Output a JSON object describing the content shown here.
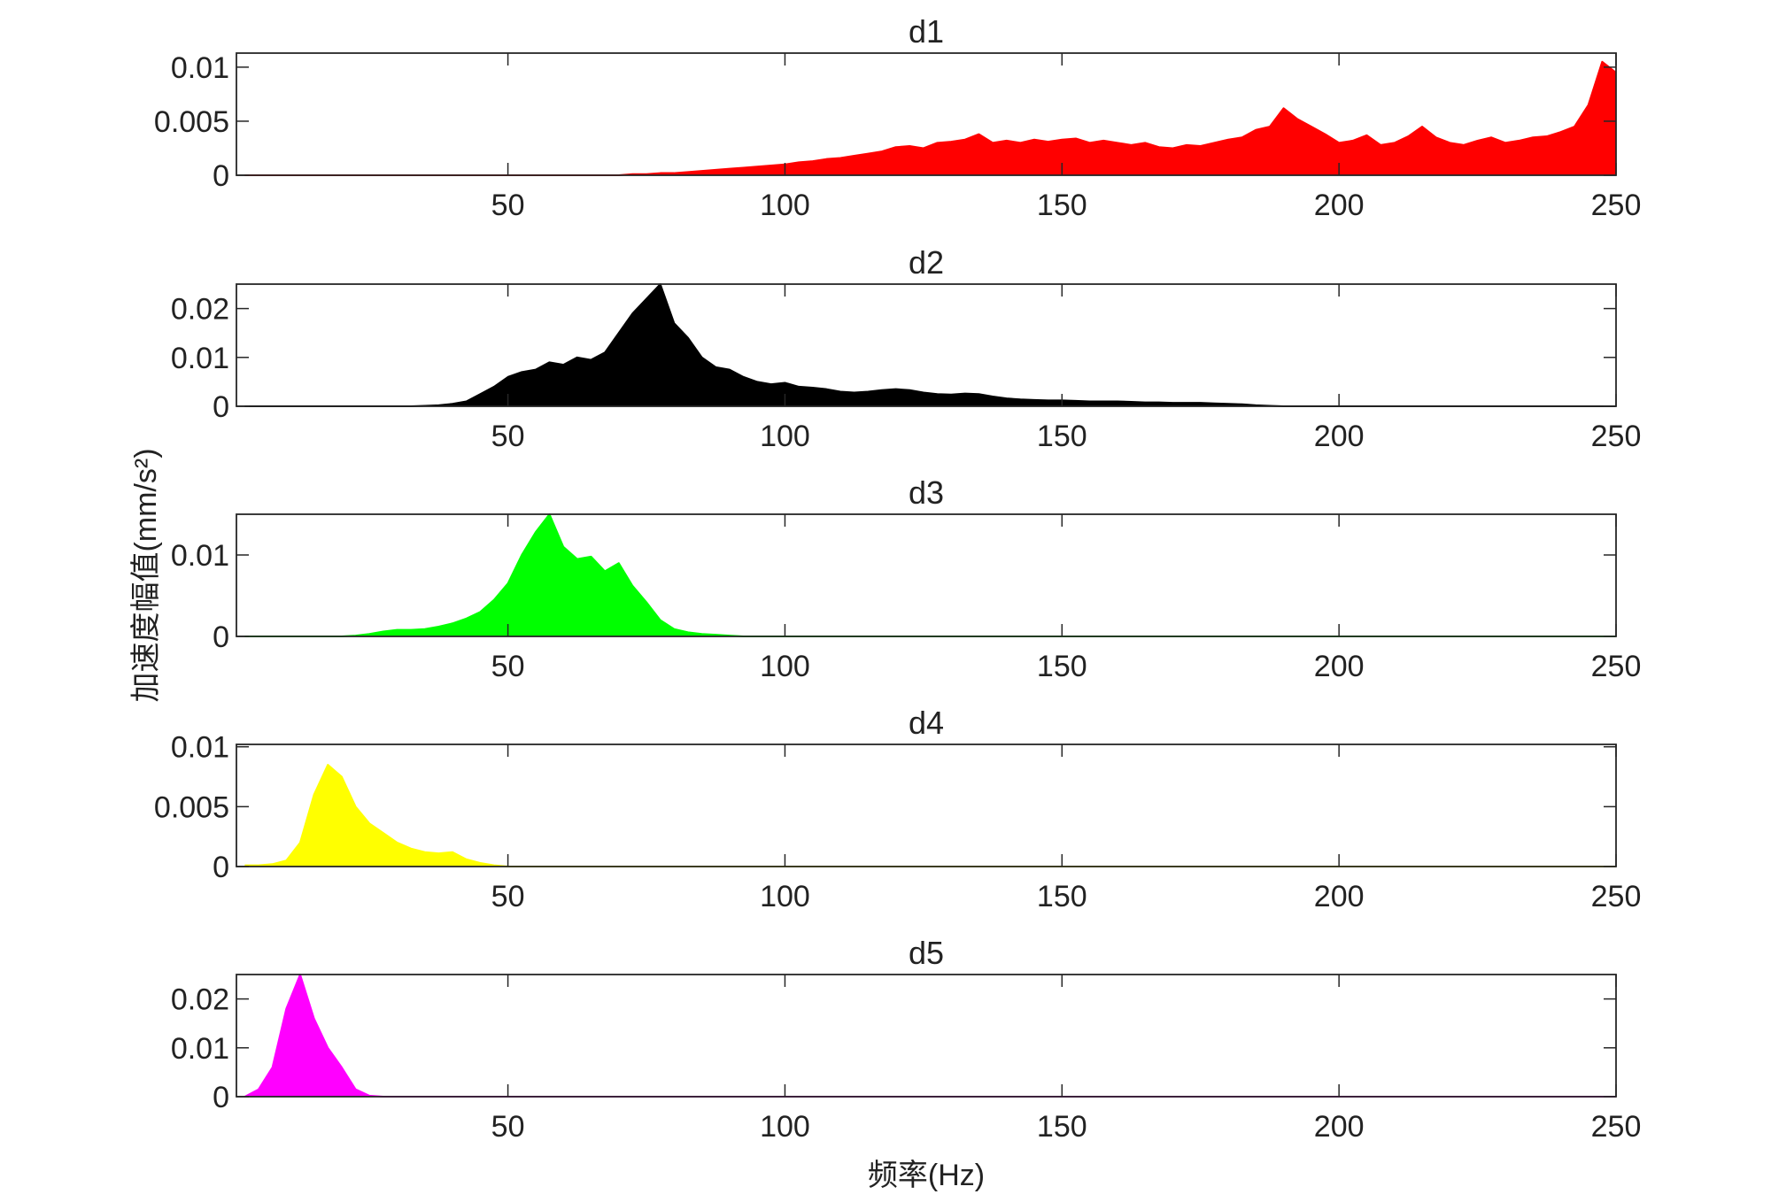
{
  "chart_data": [
    {
      "type": "area",
      "title": "d1",
      "color": "#ff0000",
      "x": [
        2.5,
        5,
        7.5,
        10,
        12.5,
        15,
        17.5,
        20,
        22.5,
        25,
        27.5,
        30,
        32.5,
        35,
        37.5,
        40,
        42.5,
        45,
        47.5,
        50,
        52.5,
        55,
        57.5,
        60,
        62.5,
        65,
        67.5,
        70,
        72.5,
        75,
        77.5,
        80,
        82.5,
        85,
        87.5,
        90,
        92.5,
        95,
        97.5,
        100,
        102.5,
        105,
        107.5,
        110,
        112.5,
        115,
        117.5,
        120,
        122.5,
        125,
        127.5,
        130,
        132.5,
        135,
        137.5,
        140,
        142.5,
        145,
        147.5,
        150,
        152.5,
        155,
        157.5,
        160,
        162.5,
        165,
        167.5,
        170,
        172.5,
        175,
        177.5,
        180,
        182.5,
        185,
        187.5,
        190,
        192.5,
        195,
        197.5,
        200,
        202.5,
        205,
        207.5,
        210,
        212.5,
        215,
        217.5,
        220,
        222.5,
        225,
        227.5,
        230,
        232.5,
        235,
        237.5,
        240,
        242.5,
        245,
        247.5,
        250
      ],
      "values": [
        0,
        0,
        0,
        0,
        0,
        0,
        0,
        0,
        0,
        0,
        0,
        0,
        0,
        0,
        0,
        0,
        0,
        0,
        0,
        0,
        0,
        0,
        0,
        0,
        0,
        0,
        0,
        0,
        0.0001,
        0.0001,
        0.0002,
        0.0002,
        0.0003,
        0.0004,
        0.0005,
        0.0006,
        0.0007,
        0.0008,
        0.0009,
        0.001,
        0.0012,
        0.0013,
        0.0015,
        0.0016,
        0.0018,
        0.002,
        0.0022,
        0.0026,
        0.0027,
        0.0025,
        0.003,
        0.0031,
        0.0033,
        0.0038,
        0.003,
        0.0032,
        0.003,
        0.0033,
        0.0031,
        0.0033,
        0.0034,
        0.003,
        0.0032,
        0.003,
        0.0028,
        0.003,
        0.0026,
        0.0025,
        0.0028,
        0.0027,
        0.003,
        0.0033,
        0.0035,
        0.0042,
        0.0045,
        0.0062,
        0.0052,
        0.0045,
        0.0038,
        0.003,
        0.0032,
        0.0037,
        0.0028,
        0.003,
        0.0036,
        0.0045,
        0.0035,
        0.003,
        0.0028,
        0.0032,
        0.0035,
        0.003,
        0.0032,
        0.0035,
        0.0036,
        0.004,
        0.0045,
        0.0065,
        0.0105,
        0.0095
      ],
      "xlim": [
        1,
        250
      ],
      "xticks": [
        50,
        100,
        150,
        200,
        250
      ],
      "ylim": [
        0,
        0.0113
      ],
      "yticks": [
        0,
        0.005,
        0.01
      ]
    },
    {
      "type": "area",
      "title": "d2",
      "color": "#000000",
      "x": [
        2.5,
        5,
        7.5,
        10,
        12.5,
        15,
        17.5,
        20,
        22.5,
        25,
        27.5,
        30,
        32.5,
        35,
        37.5,
        40,
        42.5,
        45,
        47.5,
        50,
        52.5,
        55,
        57.5,
        60,
        62.5,
        65,
        67.5,
        70,
        72.5,
        75,
        77.5,
        80,
        82.5,
        85,
        87.5,
        90,
        92.5,
        95,
        97.5,
        100,
        102.5,
        105,
        107.5,
        110,
        112.5,
        115,
        117.5,
        120,
        122.5,
        125,
        127.5,
        130,
        132.5,
        135,
        137.5,
        140,
        142.5,
        145,
        147.5,
        150,
        152.5,
        155,
        157.5,
        160,
        162.5,
        165,
        167.5,
        170,
        172.5,
        175,
        177.5,
        180,
        182.5,
        185,
        187.5,
        190,
        192.5,
        195,
        197.5,
        200,
        202.5,
        205,
        207.5,
        210,
        212.5,
        215,
        217.5,
        220,
        222.5,
        225,
        227.5,
        230,
        232.5,
        235,
        237.5,
        240,
        242.5,
        245,
        247.5,
        250
      ],
      "values": [
        0,
        0,
        0,
        0,
        0,
        0,
        0,
        0,
        0,
        0,
        0,
        0,
        0,
        0.0001,
        0.0002,
        0.0005,
        0.001,
        0.0025,
        0.004,
        0.006,
        0.007,
        0.0075,
        0.009,
        0.0085,
        0.01,
        0.0095,
        0.011,
        0.015,
        0.019,
        0.022,
        0.025,
        0.017,
        0.014,
        0.01,
        0.008,
        0.0075,
        0.006,
        0.005,
        0.0045,
        0.0048,
        0.004,
        0.0038,
        0.0035,
        0.003,
        0.0028,
        0.003,
        0.0033,
        0.0035,
        0.0033,
        0.0028,
        0.0025,
        0.0024,
        0.0026,
        0.0025,
        0.002,
        0.0016,
        0.0014,
        0.0013,
        0.0012,
        0.0012,
        0.0011,
        0.001,
        0.001,
        0.001,
        0.0009,
        0.0008,
        0.0008,
        0.0007,
        0.0007,
        0.0007,
        0.0006,
        0.0005,
        0.0004,
        0.0002,
        0.0001,
        0,
        0,
        0,
        0,
        0,
        0,
        0,
        0,
        0,
        0,
        0,
        0,
        0,
        0,
        0,
        0,
        0,
        0,
        0,
        0,
        0,
        0,
        0,
        0,
        0
      ],
      "xlim": [
        1,
        250
      ],
      "xticks": [
        50,
        100,
        150,
        200,
        250
      ],
      "ylim": [
        0,
        0.025
      ],
      "yticks": [
        0,
        0.01,
        0.02
      ]
    },
    {
      "type": "area",
      "title": "d3",
      "color": "#00ff00",
      "ylabel": "加速度幅值(mm/s²)",
      "x": [
        2.5,
        5,
        7.5,
        10,
        12.5,
        15,
        17.5,
        20,
        22.5,
        25,
        27.5,
        30,
        32.5,
        35,
        37.5,
        40,
        42.5,
        45,
        47.5,
        50,
        52.5,
        55,
        57.5,
        60,
        62.5,
        65,
        67.5,
        70,
        72.5,
        75,
        77.5,
        80,
        82.5,
        85,
        87.5,
        90,
        92.5,
        95,
        97.5,
        100,
        102.5,
        105,
        107.5,
        110,
        112.5,
        115,
        117.5,
        120,
        122.5,
        125,
        127.5,
        130,
        132.5,
        135,
        137.5,
        140,
        142.5,
        145,
        147.5,
        150,
        152.5,
        155,
        157.5,
        160,
        162.5,
        165,
        167.5,
        170,
        172.5,
        175,
        177.5,
        180,
        182.5,
        185,
        187.5,
        190,
        192.5,
        195,
        197.5,
        200,
        202.5,
        205,
        207.5,
        210,
        212.5,
        215,
        217.5,
        220,
        222.5,
        225,
        227.5,
        230,
        232.5,
        235,
        237.5,
        240,
        242.5,
        245,
        247.5,
        250
      ],
      "values": [
        0,
        0,
        0,
        0,
        0,
        0,
        0,
        0,
        0.0001,
        0.0003,
        0.0006,
        0.0008,
        0.0008,
        0.0009,
        0.0012,
        0.0016,
        0.0022,
        0.003,
        0.0045,
        0.0065,
        0.01,
        0.0128,
        0.015,
        0.011,
        0.0095,
        0.0098,
        0.008,
        0.009,
        0.0062,
        0.0042,
        0.002,
        0.0009,
        0.0005,
        0.0003,
        0.0002,
        0.0001,
        0,
        0,
        0,
        0,
        0,
        0,
        0,
        0,
        0,
        0,
        0,
        0,
        0,
        0,
        0,
        0,
        0,
        0,
        0,
        0,
        0,
        0,
        0,
        0,
        0,
        0,
        0,
        0,
        0,
        0,
        0,
        0,
        0,
        0,
        0,
        0,
        0,
        0,
        0,
        0,
        0,
        0,
        0,
        0,
        0,
        0,
        0,
        0,
        0,
        0,
        0,
        0,
        0,
        0,
        0,
        0,
        0,
        0,
        0,
        0,
        0,
        0,
        0,
        0
      ],
      "xlim": [
        1,
        250
      ],
      "xticks": [
        50,
        100,
        150,
        200,
        250
      ],
      "ylim": [
        0,
        0.015
      ],
      "yticks": [
        0,
        0.01
      ]
    },
    {
      "type": "area",
      "title": "d4",
      "color": "#ffff00",
      "x": [
        2.5,
        5,
        7.5,
        10,
        12.5,
        15,
        17.5,
        20,
        22.5,
        25,
        27.5,
        30,
        32.5,
        35,
        37.5,
        40,
        42.5,
        45,
        47.5,
        50,
        52.5,
        55,
        57.5,
        60,
        62.5,
        65,
        67.5,
        70,
        72.5,
        75,
        77.5,
        80,
        82.5,
        85,
        87.5,
        90,
        92.5,
        95,
        97.5,
        100,
        102.5,
        105,
        107.5,
        110,
        112.5,
        115,
        117.5,
        120,
        122.5,
        125,
        127.5,
        130,
        132.5,
        135,
        137.5,
        140,
        142.5,
        145,
        147.5,
        150,
        152.5,
        155,
        157.5,
        160,
        162.5,
        165,
        167.5,
        170,
        172.5,
        175,
        177.5,
        180,
        182.5,
        185,
        187.5,
        190,
        192.5,
        195,
        197.5,
        200,
        202.5,
        205,
        207.5,
        210,
        212.5,
        215,
        217.5,
        220,
        222.5,
        225,
        227.5,
        230,
        232.5,
        235,
        237.5,
        240,
        242.5,
        245,
        247.5,
        250
      ],
      "values": [
        0.0001,
        0.0001,
        0.0002,
        0.0005,
        0.002,
        0.006,
        0.0085,
        0.0075,
        0.005,
        0.0036,
        0.0028,
        0.002,
        0.0015,
        0.0012,
        0.0011,
        0.0012,
        0.0006,
        0.0003,
        0.0001,
        0,
        0,
        0,
        0,
        0,
        0,
        0,
        0,
        0,
        0,
        0,
        0,
        0,
        0,
        0,
        0,
        0,
        0,
        0,
        0,
        0,
        0,
        0,
        0,
        0,
        0,
        0,
        0,
        0,
        0,
        0,
        0,
        0,
        0,
        0,
        0,
        0,
        0,
        0,
        0,
        0,
        0,
        0,
        0,
        0,
        0,
        0,
        0,
        0,
        0,
        0,
        0,
        0,
        0,
        0,
        0,
        0,
        0,
        0,
        0,
        0,
        0,
        0,
        0,
        0,
        0,
        0,
        0,
        0,
        0,
        0,
        0,
        0,
        0,
        0,
        0,
        0,
        0,
        0,
        0,
        0
      ],
      "xlim": [
        1,
        250
      ],
      "xticks": [
        50,
        100,
        150,
        200,
        250
      ],
      "ylim": [
        0,
        0.0102
      ],
      "yticks": [
        0,
        0.005,
        0.01
      ]
    },
    {
      "type": "area",
      "title": "d5",
      "color": "#ff00ff",
      "xlabel": "频率(Hz)",
      "x": [
        2.5,
        5,
        7.5,
        10,
        12.5,
        15,
        17.5,
        20,
        22.5,
        25,
        27.5,
        30,
        32.5,
        35,
        37.5,
        40,
        42.5,
        45,
        47.5,
        50,
        52.5,
        55,
        57.5,
        60,
        62.5,
        65,
        67.5,
        70,
        72.5,
        75,
        77.5,
        80,
        82.5,
        85,
        87.5,
        90,
        92.5,
        95,
        97.5,
        100,
        102.5,
        105,
        107.5,
        110,
        112.5,
        115,
        117.5,
        120,
        122.5,
        125,
        127.5,
        130,
        132.5,
        135,
        137.5,
        140,
        142.5,
        145,
        147.5,
        150,
        152.5,
        155,
        157.5,
        160,
        162.5,
        165,
        167.5,
        170,
        172.5,
        175,
        177.5,
        180,
        182.5,
        185,
        187.5,
        190,
        192.5,
        195,
        197.5,
        200,
        202.5,
        205,
        207.5,
        210,
        212.5,
        215,
        217.5,
        220,
        222.5,
        225,
        227.5,
        230,
        232.5,
        235,
        237.5,
        240,
        242.5,
        245,
        247.5,
        250
      ],
      "values": [
        0,
        0.0015,
        0.006,
        0.018,
        0.025,
        0.016,
        0.01,
        0.006,
        0.0015,
        0.0002,
        0,
        0,
        0,
        0,
        0,
        0,
        0,
        0,
        0,
        0,
        0,
        0,
        0,
        0,
        0,
        0,
        0,
        0,
        0,
        0,
        0,
        0,
        0,
        0,
        0,
        0,
        0,
        0,
        0,
        0,
        0,
        0,
        0,
        0,
        0,
        0,
        0,
        0,
        0,
        0,
        0,
        0,
        0,
        0,
        0,
        0,
        0,
        0,
        0,
        0,
        0,
        0,
        0,
        0,
        0,
        0,
        0,
        0,
        0,
        0,
        0,
        0,
        0,
        0,
        0,
        0,
        0,
        0,
        0,
        0,
        0,
        0,
        0,
        0,
        0,
        0,
        0,
        0,
        0,
        0,
        0,
        0,
        0,
        0,
        0,
        0,
        0,
        0,
        0,
        0
      ],
      "xlim": [
        1,
        250
      ],
      "xticks": [
        50,
        100,
        150,
        200,
        250
      ],
      "ylim": [
        0,
        0.025
      ],
      "yticks": [
        0,
        0.01,
        0.02
      ]
    }
  ]
}
